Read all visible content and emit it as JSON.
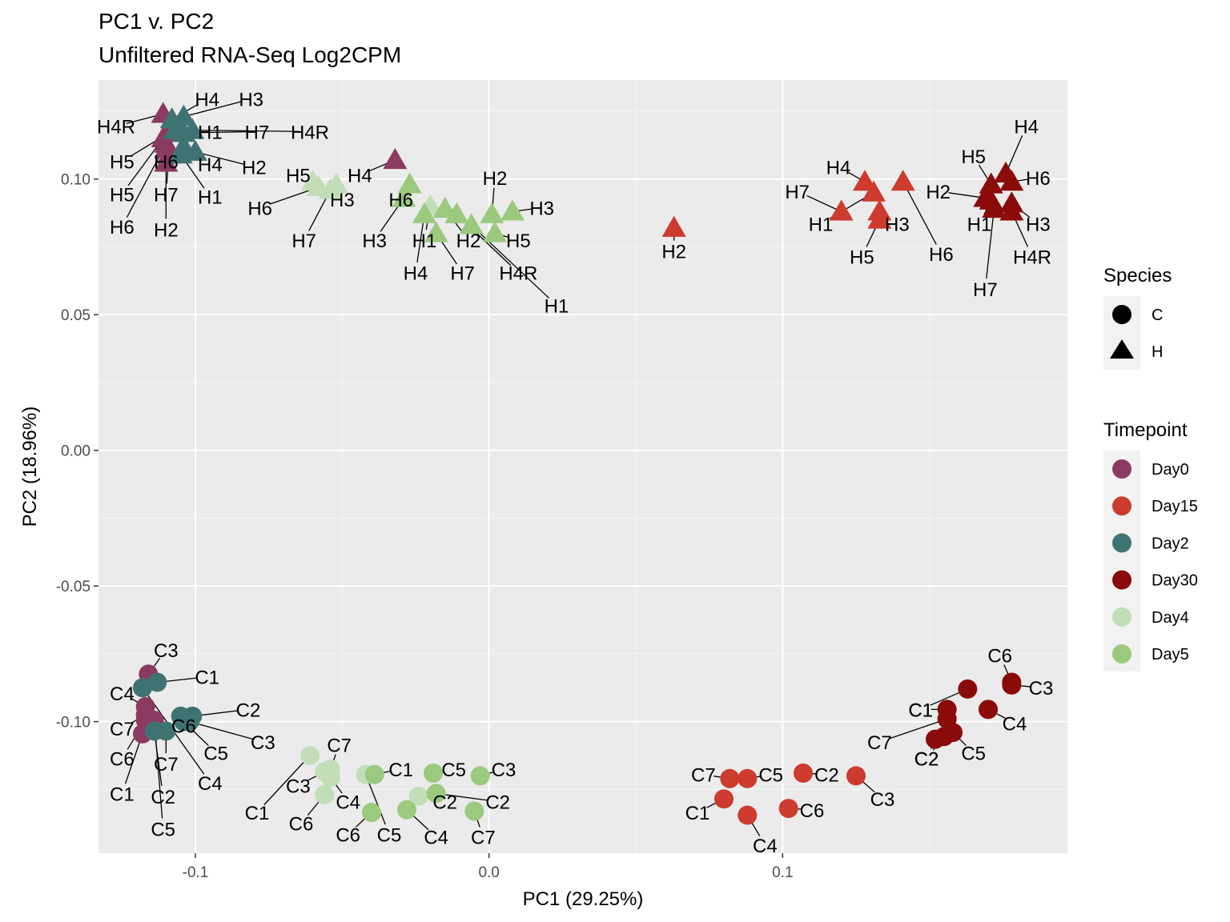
{
  "chart_data": {
    "type": "scatter",
    "title": "PC1 v. PC2",
    "subtitle": "Unfiltered RNA-Seq Log2CPM",
    "xlabel": "PC1 (29.25%)",
    "ylabel": "PC2 (18.96%)",
    "xlim": [
      -0.133,
      0.197
    ],
    "ylim": [
      -0.1485,
      0.1365
    ],
    "x_ticks": [
      -0.1,
      0.0,
      0.1
    ],
    "x_tick_labels": [
      "-0.1",
      "0.0",
      "0.1"
    ],
    "y_ticks": [
      -0.1,
      -0.05,
      0.0,
      0.05,
      0.1
    ],
    "y_tick_labels": [
      "-0.10",
      "-0.05",
      "0.00",
      "0.05",
      "0.10"
    ],
    "grid": true,
    "legend_position": "right",
    "legends": {
      "species": {
        "title": "Species",
        "entries": [
          {
            "label": "C",
            "shape": "circle"
          },
          {
            "label": "H",
            "shape": "triangle"
          }
        ]
      },
      "timepoint": {
        "title": "Timepoint",
        "entries": [
          {
            "label": "Day0",
            "color": "#8B3A62"
          },
          {
            "label": "Day15",
            "color": "#CD3A2E"
          },
          {
            "label": "Day2",
            "color": "#3F7373"
          },
          {
            "label": "Day30",
            "color": "#8B0A0A"
          },
          {
            "label": "Day4",
            "color": "#C2DEB8"
          },
          {
            "label": "Day5",
            "color": "#9BC97E"
          }
        ]
      }
    },
    "points": [
      {
        "species": "H",
        "timepoint": "Day0",
        "label": "H4R",
        "x": -0.111,
        "y": 0.124,
        "lx": -0.127,
        "ly": 0.1195
      },
      {
        "species": "H",
        "timepoint": "Day0",
        "label": "H5",
        "x": -0.109,
        "y": 0.117,
        "lx": -0.125,
        "ly": 0.1065
      },
      {
        "species": "H",
        "timepoint": "Day0",
        "label": "H5",
        "x": -0.111,
        "y": 0.115,
        "lx": -0.125,
        "ly": 0.0945
      },
      {
        "species": "H",
        "timepoint": "Day0",
        "label": "H6",
        "x": -0.11,
        "y": 0.113,
        "lx": -0.125,
        "ly": 0.0825
      },
      {
        "species": "H",
        "timepoint": "Day0",
        "label": "H6",
        "x": -0.11,
        "y": 0.111,
        "lx": -0.11,
        "ly": 0.1065
      },
      {
        "species": "H",
        "timepoint": "Day0",
        "label": "H7",
        "x": -0.109,
        "y": 0.109,
        "lx": -0.11,
        "ly": 0.0945
      },
      {
        "species": "H",
        "timepoint": "Day0",
        "label": "H2",
        "x": -0.11,
        "y": 0.106,
        "lx": -0.11,
        "ly": 0.0815
      },
      {
        "species": "H",
        "timepoint": "Day0",
        "label": "H4",
        "x": -0.032,
        "y": 0.107,
        "lx": -0.044,
        "ly": 0.1015
      },
      {
        "species": "H",
        "timepoint": "Day2",
        "label": "H4",
        "x": -0.108,
        "y": 0.122,
        "lx": -0.096,
        "ly": 0.1295
      },
      {
        "species": "H",
        "timepoint": "Day2",
        "label": "H3",
        "x": -0.104,
        "y": 0.123,
        "lx": -0.081,
        "ly": 0.1295
      },
      {
        "species": "H",
        "timepoint": "Day2",
        "label": "H1",
        "x": -0.107,
        "y": 0.118,
        "lx": -0.095,
        "ly": 0.1175
      },
      {
        "species": "H",
        "timepoint": "Day2",
        "label": "H7",
        "x": -0.104,
        "y": 0.117,
        "lx": -0.079,
        "ly": 0.1175
      },
      {
        "species": "H",
        "timepoint": "Day2",
        "label": "H4R",
        "x": -0.101,
        "y": 0.118,
        "lx": -0.061,
        "ly": 0.1175
      },
      {
        "species": "H",
        "timepoint": "Day2",
        "label": "H4",
        "x": -0.104,
        "y": 0.112,
        "lx": -0.095,
        "ly": 0.1055
      },
      {
        "species": "H",
        "timepoint": "Day2",
        "label": "H2",
        "x": -0.1,
        "y": 0.11,
        "lx": -0.08,
        "ly": 0.1045
      },
      {
        "species": "H",
        "timepoint": "Day2",
        "label": "H1",
        "x": -0.105,
        "y": 0.109,
        "lx": -0.095,
        "ly": 0.0935
      },
      {
        "species": "H",
        "timepoint": "Day4",
        "label": "H5",
        "x": -0.06,
        "y": 0.099,
        "lx": -0.065,
        "ly": 0.1015
      },
      {
        "species": "H",
        "timepoint": "Day4",
        "label": "H6",
        "x": -0.058,
        "y": 0.097,
        "lx": -0.078,
        "ly": 0.0895
      },
      {
        "species": "H",
        "timepoint": "Day4",
        "label": "H3",
        "x": -0.052,
        "y": 0.098,
        "lx": -0.05,
        "ly": 0.0925
      },
      {
        "species": "H",
        "timepoint": "Day4",
        "label": "H7",
        "x": -0.054,
        "y": 0.096,
        "lx": -0.063,
        "ly": 0.0775
      },
      {
        "species": "H",
        "timepoint": "Day4",
        "label": "H1",
        "x": -0.02,
        "y": 0.09,
        "lx": -0.022,
        "ly": 0.0775
      },
      {
        "species": "H",
        "timepoint": "Day5",
        "label": "H6",
        "x": -0.027,
        "y": 0.098,
        "lx": -0.03,
        "ly": 0.0925
      },
      {
        "species": "H",
        "timepoint": "Day5",
        "label": "H3",
        "x": -0.029,
        "y": 0.093,
        "lx": -0.039,
        "ly": 0.0775
      },
      {
        "species": "H",
        "timepoint": "Day5",
        "label": "H4",
        "x": -0.022,
        "y": 0.087,
        "lx": -0.025,
        "ly": 0.0655
      },
      {
        "species": "H",
        "timepoint": "Day5",
        "label": "H2",
        "x": -0.015,
        "y": 0.089,
        "lx": -0.007,
        "ly": 0.0775
      },
      {
        "species": "H",
        "timepoint": "Day5",
        "label": "H7",
        "x": -0.018,
        "y": 0.08,
        "lx": -0.009,
        "ly": 0.0655
      },
      {
        "species": "H",
        "timepoint": "Day5",
        "label": "H4R",
        "x": -0.011,
        "y": 0.087,
        "lx": 0.01,
        "ly": 0.0655
      },
      {
        "species": "H",
        "timepoint": "Day5",
        "label": "H1",
        "x": -0.006,
        "y": 0.083,
        "lx": 0.023,
        "ly": 0.0535
      },
      {
        "species": "H",
        "timepoint": "Day5",
        "label": "H2",
        "x": 0.001,
        "y": 0.087,
        "lx": 0.002,
        "ly": 0.1005
      },
      {
        "species": "H",
        "timepoint": "Day5",
        "label": "H3",
        "x": 0.008,
        "y": 0.088,
        "lx": 0.018,
        "ly": 0.0895
      },
      {
        "species": "H",
        "timepoint": "Day5",
        "label": "H5",
        "x": 0.002,
        "y": 0.08,
        "lx": 0.01,
        "ly": 0.0775
      },
      {
        "species": "H",
        "timepoint": "Day15",
        "label": "H2",
        "x": 0.063,
        "y": 0.082,
        "lx": 0.063,
        "ly": 0.0735
      },
      {
        "species": "H",
        "timepoint": "Day15",
        "label": "H4",
        "x": 0.128,
        "y": 0.099,
        "lx": 0.119,
        "ly": 0.1045
      },
      {
        "species": "H",
        "timepoint": "Day15",
        "label": "H7",
        "x": 0.12,
        "y": 0.088,
        "lx": 0.105,
        "ly": 0.0955
      },
      {
        "species": "H",
        "timepoint": "Day15",
        "label": "H1",
        "x": 0.131,
        "y": 0.095,
        "lx": 0.113,
        "ly": 0.0835
      },
      {
        "species": "H",
        "timepoint": "Day15",
        "label": "H3",
        "x": 0.133,
        "y": 0.088,
        "lx": 0.139,
        "ly": 0.0835
      },
      {
        "species": "H",
        "timepoint": "Day15",
        "label": "H5",
        "x": 0.133,
        "y": 0.085,
        "lx": 0.127,
        "ly": 0.0715
      },
      {
        "species": "H",
        "timepoint": "Day15",
        "label": "H6",
        "x": 0.141,
        "y": 0.099,
        "lx": 0.154,
        "ly": 0.0725
      },
      {
        "species": "H",
        "timepoint": "Day30",
        "label": "H4",
        "x": 0.176,
        "y": 0.102,
        "lx": 0.183,
        "ly": 0.1195
      },
      {
        "species": "H",
        "timepoint": "Day30",
        "label": "H5",
        "x": 0.171,
        "y": 0.098,
        "lx": 0.165,
        "ly": 0.1085
      },
      {
        "species": "H",
        "timepoint": "Day30",
        "label": "H6",
        "x": 0.178,
        "y": 0.099,
        "lx": 0.187,
        "ly": 0.1005
      },
      {
        "species": "H",
        "timepoint": "Day30",
        "label": "H2",
        "x": 0.169,
        "y": 0.093,
        "lx": 0.153,
        "ly": 0.0955
      },
      {
        "species": "H",
        "timepoint": "Day30",
        "label": "H1",
        "x": 0.171,
        "y": 0.092,
        "lx": 0.167,
        "ly": 0.0835
      },
      {
        "species": "H",
        "timepoint": "Day30",
        "label": "H3",
        "x": 0.178,
        "y": 0.091,
        "lx": 0.187,
        "ly": 0.0835
      },
      {
        "species": "H",
        "timepoint": "Day30",
        "label": "H4R",
        "x": 0.178,
        "y": 0.088,
        "lx": 0.185,
        "ly": 0.0715
      },
      {
        "species": "H",
        "timepoint": "Day30",
        "label": "H7",
        "x": 0.172,
        "y": 0.089,
        "lx": 0.169,
        "ly": 0.0595
      },
      {
        "species": "C",
        "timepoint": "Day0",
        "label": "C3",
        "x": -0.116,
        "y": -0.0825,
        "lx": -0.11,
        "ly": -0.0735
      },
      {
        "species": "C",
        "timepoint": "Day0",
        "label": "C4",
        "x": -0.117,
        "y": -0.0945,
        "lx": -0.125,
        "ly": -0.0895
      },
      {
        "species": "C",
        "timepoint": "Day0",
        "label": "C7",
        "x": -0.117,
        "y": -0.0975,
        "lx": -0.125,
        "ly": -0.1025
      },
      {
        "species": "C",
        "timepoint": "Day0",
        "label": "C6",
        "x": -0.117,
        "y": -0.0995,
        "lx": -0.125,
        "ly": -0.1135
      },
      {
        "species": "C",
        "timepoint": "Day0",
        "label": "C1",
        "x": -0.118,
        "y": -0.1045,
        "lx": -0.125,
        "ly": -0.1265
      },
      {
        "species": "C",
        "timepoint": "Day0",
        "label": "C5",
        "x": -0.114,
        "y": -0.0995,
        "lx": -0.111,
        "ly": -0.1395
      },
      {
        "species": "C",
        "timepoint": "Day2",
        "label": "C1",
        "x": -0.113,
        "y": -0.0855,
        "lx": -0.096,
        "ly": -0.0835
      },
      {
        "species": "C",
        "timepoint": "Day2",
        "label": "C4",
        "x": -0.118,
        "y": -0.0875,
        "lx": -0.095,
        "ly": -0.1225
      },
      {
        "species": "C",
        "timepoint": "Day2",
        "label": "C6",
        "x": -0.105,
        "y": -0.098,
        "lx": -0.104,
        "ly": -0.1015
      },
      {
        "species": "C",
        "timepoint": "Day2",
        "label": "C2",
        "x": -0.101,
        "y": -0.098,
        "lx": -0.082,
        "ly": -0.0955
      },
      {
        "species": "C",
        "timepoint": "Day2",
        "label": "C3",
        "x": -0.102,
        "y": -0.1,
        "lx": -0.077,
        "ly": -0.1075
      },
      {
        "species": "C",
        "timepoint": "Day2",
        "label": "C5",
        "x": -0.104,
        "y": -0.1,
        "lx": -0.093,
        "ly": -0.1115
      },
      {
        "species": "C",
        "timepoint": "Day2",
        "label": "C7",
        "x": -0.11,
        "y": -0.1035,
        "lx": -0.11,
        "ly": -0.1155
      },
      {
        "species": "C",
        "timepoint": "Day2",
        "label": "C2",
        "x": -0.114,
        "y": -0.1035,
        "lx": -0.111,
        "ly": -0.1275
      },
      {
        "species": "C",
        "timepoint": "Day4",
        "label": "C7",
        "x": -0.054,
        "y": -0.1175,
        "lx": -0.051,
        "ly": -0.1085
      },
      {
        "species": "C",
        "timepoint": "Day4",
        "label": "C1",
        "x": -0.061,
        "y": -0.1125,
        "lx": -0.079,
        "ly": -0.1335
      },
      {
        "species": "C",
        "timepoint": "Day4",
        "label": "C3",
        "x": -0.056,
        "y": -0.1185,
        "lx": -0.065,
        "ly": -0.1235
      },
      {
        "species": "C",
        "timepoint": "Day4",
        "label": "C6",
        "x": -0.056,
        "y": -0.127,
        "lx": -0.064,
        "ly": -0.1375
      },
      {
        "species": "C",
        "timepoint": "Day4",
        "label": "C4",
        "x": -0.054,
        "y": -0.1205,
        "lx": -0.048,
        "ly": -0.1295
      },
      {
        "species": "C",
        "timepoint": "Day4",
        "label": "C5",
        "x": -0.042,
        "y": -0.1195,
        "lx": -0.034,
        "ly": -0.1415
      },
      {
        "species": "C",
        "timepoint": "Day4",
        "label": "C2",
        "x": -0.024,
        "y": -0.1275,
        "lx": -0.015,
        "ly": -0.1295
      },
      {
        "species": "C",
        "timepoint": "Day5",
        "label": "C1",
        "x": -0.039,
        "y": -0.1195,
        "lx": -0.03,
        "ly": -0.1175
      },
      {
        "species": "C",
        "timepoint": "Day5",
        "label": "C6",
        "x": -0.04,
        "y": -0.1335,
        "lx": -0.048,
        "ly": -0.1415
      },
      {
        "species": "C",
        "timepoint": "Day5",
        "label": "C5",
        "x": -0.019,
        "y": -0.119,
        "lx": -0.012,
        "ly": -0.1175
      },
      {
        "species": "C",
        "timepoint": "Day5",
        "label": "C4",
        "x": -0.028,
        "y": -0.1325,
        "lx": -0.018,
        "ly": -0.1425
      },
      {
        "species": "C",
        "timepoint": "Day5",
        "label": "C2",
        "x": -0.018,
        "y": -0.1265,
        "lx": 0.003,
        "ly": -0.1295
      },
      {
        "species": "C",
        "timepoint": "Day5",
        "label": "C3",
        "x": -0.003,
        "y": -0.12,
        "lx": 0.005,
        "ly": -0.1175
      },
      {
        "species": "C",
        "timepoint": "Day5",
        "label": "C7",
        "x": -0.005,
        "y": -0.133,
        "lx": -0.002,
        "ly": -0.1425
      },
      {
        "species": "C",
        "timepoint": "Day15",
        "label": "C7",
        "x": 0.082,
        "y": -0.121,
        "lx": 0.073,
        "ly": -0.1195
      },
      {
        "species": "C",
        "timepoint": "Day15",
        "label": "C5",
        "x": 0.088,
        "y": -0.121,
        "lx": 0.096,
        "ly": -0.1195
      },
      {
        "species": "C",
        "timepoint": "Day15",
        "label": "C2",
        "x": 0.107,
        "y": -0.119,
        "lx": 0.115,
        "ly": -0.1195
      },
      {
        "species": "C",
        "timepoint": "Day15",
        "label": "C3",
        "x": 0.125,
        "y": -0.12,
        "lx": 0.134,
        "ly": -0.1285
      },
      {
        "species": "C",
        "timepoint": "Day15",
        "label": "C1",
        "x": 0.08,
        "y": -0.1285,
        "lx": 0.071,
        "ly": -0.1335
      },
      {
        "species": "C",
        "timepoint": "Day15",
        "label": "C6",
        "x": 0.102,
        "y": -0.132,
        "lx": 0.11,
        "ly": -0.1325
      },
      {
        "species": "C",
        "timepoint": "Day15",
        "label": "C4",
        "x": 0.088,
        "y": -0.1345,
        "lx": 0.094,
        "ly": -0.1455
      },
      {
        "species": "C",
        "timepoint": "Day30",
        "label": "C6",
        "x": 0.178,
        "y": -0.0855,
        "lx": 0.174,
        "ly": -0.0755
      },
      {
        "species": "C",
        "timepoint": "Day30",
        "label": "C3",
        "x": 0.178,
        "y": -0.0865,
        "lx": 0.188,
        "ly": -0.0875
      },
      {
        "species": "C",
        "timepoint": "Day30",
        "label": "C4",
        "x": 0.17,
        "y": -0.0955,
        "lx": 0.179,
        "ly": -0.1005
      },
      {
        "species": "C",
        "timepoint": "Day30",
        "label": "C1",
        "x": 0.163,
        "y": -0.088,
        "lx": 0.147,
        "ly": -0.0955
      },
      {
        "species": "C",
        "timepoint": "Day30",
        "label": "C1",
        "x": 0.156,
        "y": -0.0955,
        "lx": 0.147,
        "ly": -0.0955
      },
      {
        "species": "C",
        "timepoint": "Day30",
        "label": "C7",
        "x": 0.156,
        "y": -0.099,
        "lx": 0.133,
        "ly": -0.1075
      },
      {
        "species": "C",
        "timepoint": "Day30",
        "label": "C2",
        "x": 0.152,
        "y": -0.1065,
        "lx": 0.149,
        "ly": -0.1135
      },
      {
        "species": "C",
        "timepoint": "Day30",
        "label": "C5",
        "x": 0.158,
        "y": -0.104,
        "lx": 0.165,
        "ly": -0.1115
      },
      {
        "species": "C",
        "timepoint": "Day30",
        "label": "C2",
        "x": 0.155,
        "y": -0.1055,
        "lx": 0.149,
        "ly": -0.1135
      }
    ]
  }
}
